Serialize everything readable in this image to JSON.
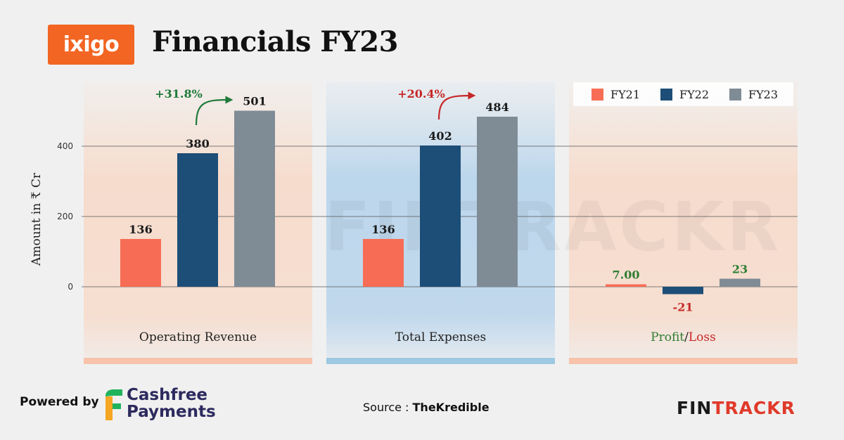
{
  "header": {
    "logo_text": "ixigo",
    "title": "Financials FY23"
  },
  "chart_data": {
    "type": "bar",
    "ylabel": "Amount in ₹ Cr",
    "yticks": [
      0,
      200,
      400
    ],
    "ylim": [
      -85,
      585
    ],
    "legend": {
      "placement": "top-right",
      "entries": [
        {
          "name": "FY21",
          "color": "#f76c54"
        },
        {
          "name": "FY22",
          "color": "#1c4e77"
        },
        {
          "name": "FY23",
          "color": "#7f8c96"
        }
      ]
    },
    "series_names": [
      "FY21",
      "FY22",
      "FY23"
    ],
    "groups": [
      {
        "name": "Operating Revenue",
        "values": [
          136,
          380,
          501
        ],
        "labels": [
          "136",
          "380",
          "501"
        ],
        "growth": "+31.8%",
        "growth_color": "#1f7a3a"
      },
      {
        "name": "Total Expenses",
        "values": [
          136,
          402,
          484
        ],
        "labels": [
          "136",
          "402",
          "484"
        ],
        "growth": "+20.4%",
        "growth_color": "#c62828"
      },
      {
        "name_parts": [
          "Profit",
          "/",
          "Loss"
        ],
        "values": [
          7,
          -21,
          23
        ],
        "labels": [
          "7.00",
          "-21",
          "23"
        ],
        "label_colors": [
          "#2e7d32",
          "#c62828",
          "#2e7d32"
        ]
      }
    ],
    "colors": {
      "profit": "#2e7d32",
      "loss": "#c62828",
      "panel_warm": "#f6dccd",
      "panel_cool": "#bcd6ec",
      "strip_warm": "#f7c3aa",
      "strip_cool": "#9dc9e2"
    }
  },
  "watermark": "FINTRACKR",
  "footer": {
    "powered_by": "Powered by",
    "sponsor_line1": "Cashfree",
    "sponsor_line2": "Payments",
    "source_label": "Source : ",
    "source_name": "TheKredible",
    "brand_part1": "FIN",
    "brand_part2": "TRACKR"
  }
}
